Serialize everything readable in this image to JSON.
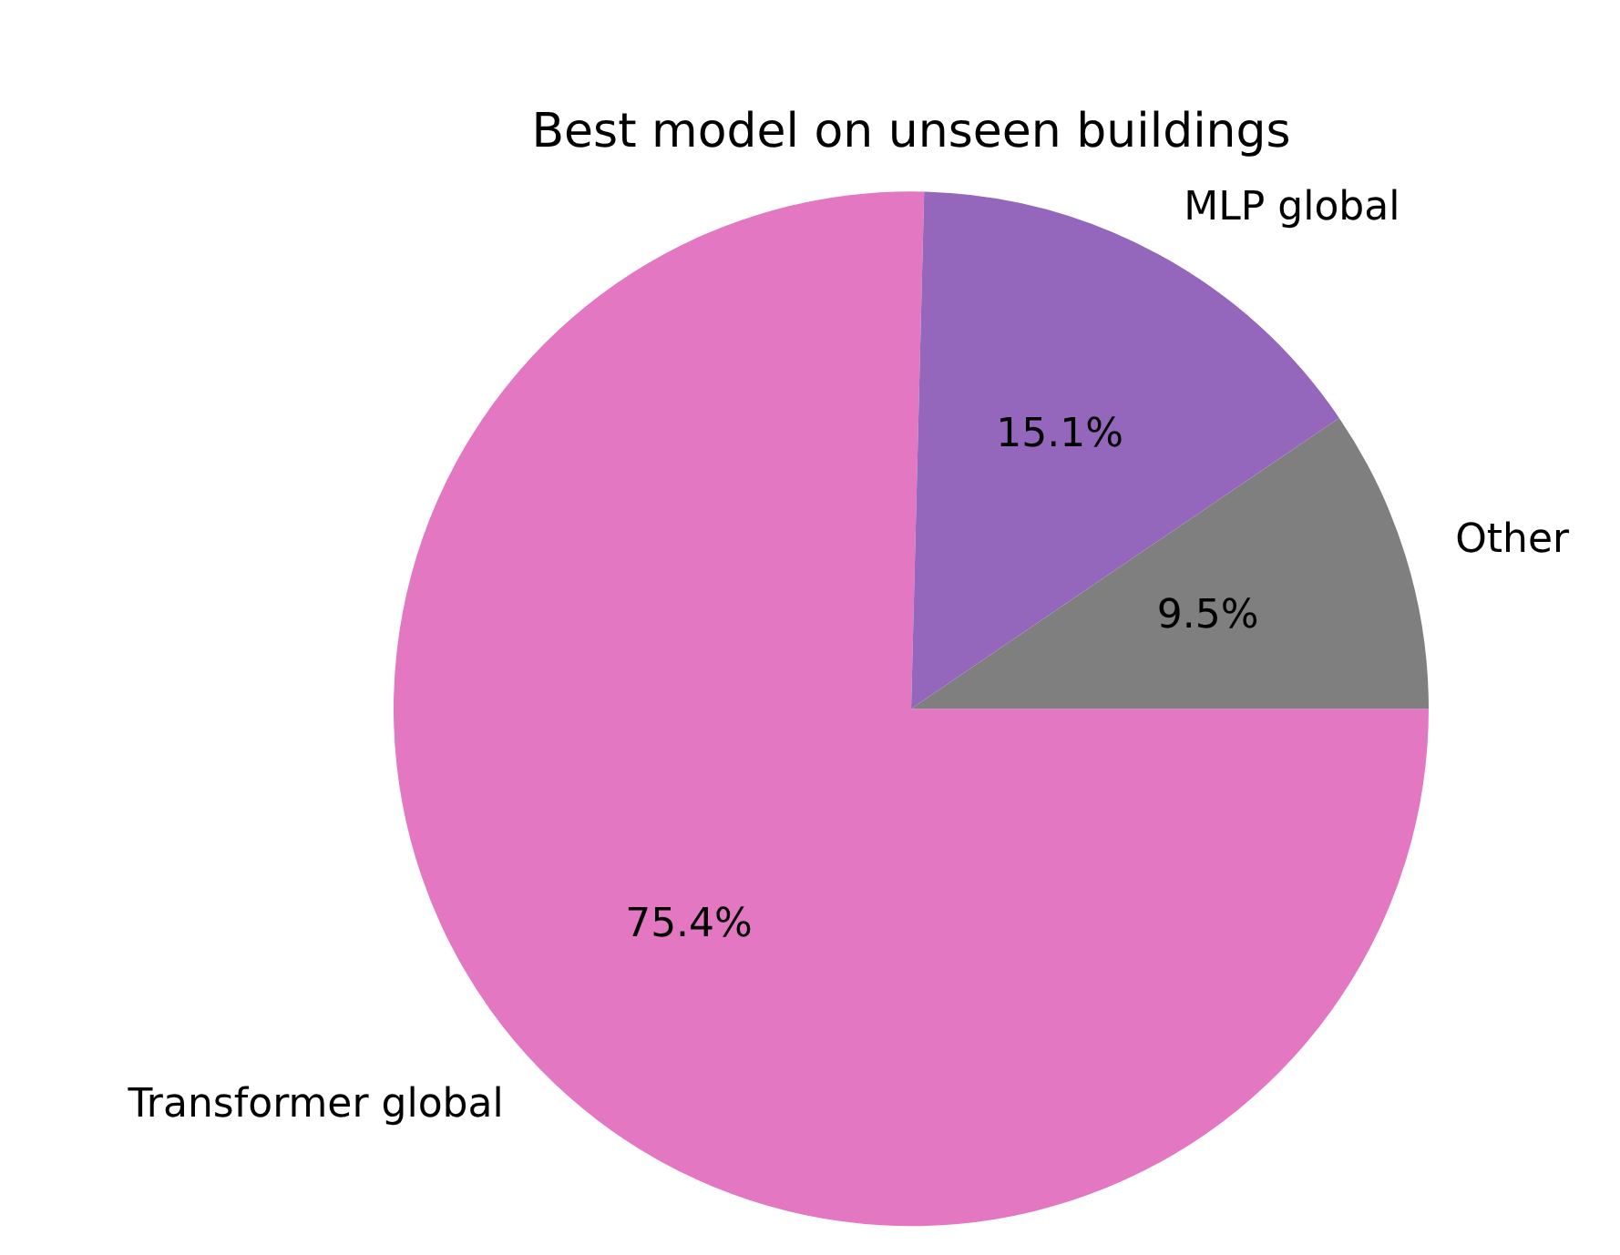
{
  "chart_data": {
    "type": "pie",
    "title": "Best model on unseen buildings",
    "categories": [
      "Transformer global",
      "MLP global",
      "Other"
    ],
    "values": [
      75.4,
      15.1,
      9.5
    ],
    "colors": [
      "#e377c2",
      "#9467bd",
      "#7f7f7f"
    ],
    "value_labels": [
      "75.4%",
      "15.1%",
      "9.5%"
    ],
    "legend": false
  }
}
